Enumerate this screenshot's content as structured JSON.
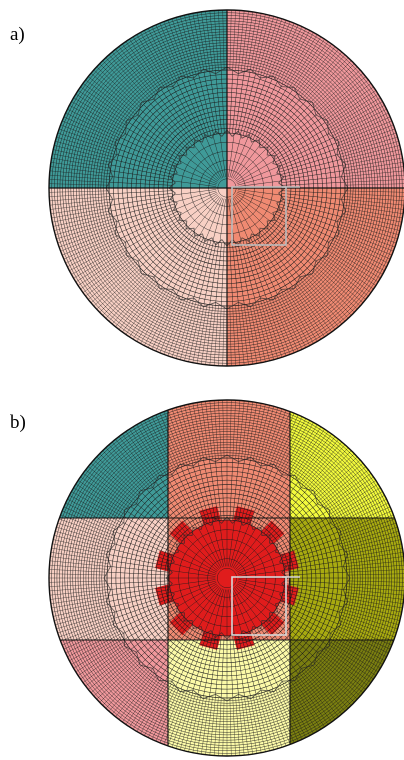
{
  "figure": {
    "panels": [
      {
        "id": "a",
        "label": "a)",
        "partitions": [
          {
            "name": "upper-left",
            "color": "#3f9a98"
          },
          {
            "name": "upper-right",
            "color": "#f0989c"
          },
          {
            "name": "lower-left",
            "color": "#f8d0c4"
          },
          {
            "name": "lower-right",
            "color": "#f08a72"
          }
        ]
      },
      {
        "id": "b",
        "label": "b)",
        "partitions": [
          {
            "name": "teal",
            "color": "#3f9a98"
          },
          {
            "name": "salmon",
            "color": "#f08a72"
          },
          {
            "name": "yellow",
            "color": "#f2fa3c"
          },
          {
            "name": "light-pink",
            "color": "#f8d0c4"
          },
          {
            "name": "red-core",
            "color": "#e01c1c"
          },
          {
            "name": "olive",
            "color": "#a8aa10"
          },
          {
            "name": "pink",
            "color": "#f0989c"
          },
          {
            "name": "cream",
            "color": "#fcfaa8"
          },
          {
            "name": "dark-olive",
            "color": "#7a7e10"
          }
        ]
      }
    ]
  }
}
